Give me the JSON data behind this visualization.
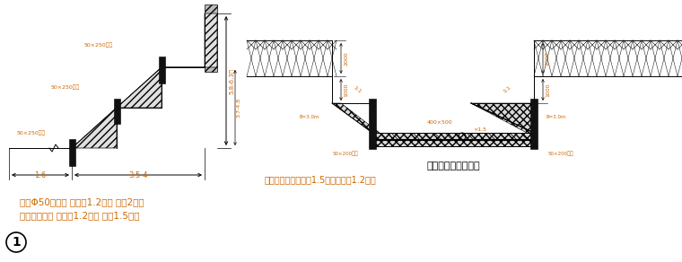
{
  "bg_color": "#ffffff",
  "black": "#000000",
  "orange": "#cc6600",
  "dark_gray": "#333333",
  "fig_width": 7.6,
  "fig_height": 2.92,
  "left_text1": "栖：Φ50锤管， 栖距为1.2米， 栖长2米，",
  "left_text2": "槽底用木栖， 栖距为1.2米， 栖长1.5米。",
  "right_title": "基槽开挖及支护方案",
  "right_note": "注：基槽栖高不小于1.5米，栖距为1.2米。",
  "label_50x250a": "50×250活板",
  "label_50x250b": "50×250活板",
  "label_50x250c": "50×250活板",
  "label_1_6": "1.6",
  "label_3_5_4": "3.5-4",
  "label_dim_top": "5.8-6.3米",
  "label_dim_mid": "3.7-4.8",
  "label_2000": "2000",
  "label_1000": "1000",
  "label_400x500": "400×500",
  "label_1_5": "×1.5",
  "label_50x200_left": "50×200活板",
  "label_50x200_right": "50×200活板",
  "label_hatch_left": "1:1",
  "label_hatch_right": "1:1",
  "label_b_left": "B=3.0m",
  "label_b_right": "B=3.0m",
  "circle_num": "1"
}
